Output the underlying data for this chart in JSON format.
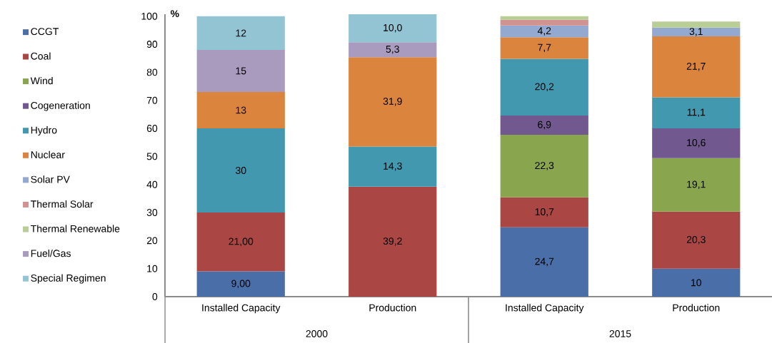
{
  "chart_data": {
    "type": "bar",
    "stacked": true,
    "ylabel": "%",
    "categories": [
      "Installed Capacity",
      "Production",
      "Installed Capacity",
      "Production"
    ],
    "annotations": [
      "2000",
      "2015"
    ],
    "ylim": [
      0,
      100.7
    ],
    "yticks": [
      0,
      10,
      20,
      30,
      40,
      50,
      60,
      70,
      80,
      90,
      100
    ],
    "legend": "left",
    "series": [
      {
        "name": "CCGT",
        "color": "#4a6fa8",
        "values": [
          9,
          null,
          24.7,
          10
        ],
        "value_labels": [
          "9,00",
          null,
          "24,7",
          "10"
        ]
      },
      {
        "name": "Coal",
        "color": "#aa4744",
        "values": [
          21,
          39.2,
          10.7,
          20.3
        ],
        "value_labels": [
          "21,00",
          "39,2",
          "10,7",
          "20,3"
        ]
      },
      {
        "name": "Wind",
        "color": "#89a54e",
        "values": [
          null,
          null,
          22.3,
          19.1
        ],
        "value_labels": [
          null,
          null,
          "22,3",
          "19,1"
        ]
      },
      {
        "name": "Cogeneration",
        "color": "#71588f",
        "values": [
          null,
          null,
          6.9,
          10.6
        ],
        "value_labels": [
          null,
          null,
          "6,9",
          "10,6"
        ]
      },
      {
        "name": "Hydro",
        "color": "#4198af",
        "values": [
          30,
          14.3,
          20.2,
          11.1
        ],
        "value_labels": [
          "30",
          "14,3",
          "20,2",
          "11,1"
        ]
      },
      {
        "name": "Nuclear",
        "color": "#db843d",
        "values": [
          13,
          31.9,
          7.7,
          21.7
        ],
        "value_labels": [
          "13",
          "31,9",
          "7,7",
          "21,7"
        ]
      },
      {
        "name": "Solar PV",
        "color": "#93a9cf",
        "values": [
          null,
          null,
          4.2,
          3.1
        ],
        "value_labels": [
          null,
          null,
          "4,2",
          "3,1"
        ]
      },
      {
        "name": "Thermal Solar",
        "color": "#d19392",
        "values": [
          null,
          null,
          2,
          null
        ]
      },
      {
        "name": "Thermal Renewable",
        "color": "#b9cd96",
        "values": [
          null,
          null,
          1.3,
          2.2
        ]
      },
      {
        "name": "Fuel/Gas",
        "color": "#a99bbd",
        "values": [
          15,
          5.3,
          null,
          null
        ],
        "value_labels": [
          "15",
          "5,3",
          null,
          null
        ]
      },
      {
        "name": "Special Regimen",
        "color": "#93c4d4",
        "values": [
          12,
          10,
          null,
          null
        ],
        "value_labels": [
          "12",
          "10,0",
          null,
          null
        ]
      }
    ]
  }
}
